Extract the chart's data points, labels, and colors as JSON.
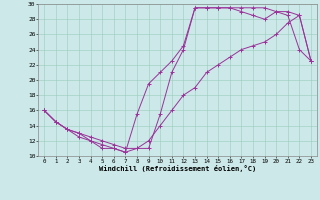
{
  "xlabel": "Windchill (Refroidissement éolien,°C)",
  "bg_color": "#cce8e8",
  "line_color": "#993399",
  "xlim": [
    -0.5,
    23.5
  ],
  "ylim": [
    10,
    30
  ],
  "xticks": [
    0,
    1,
    2,
    3,
    4,
    5,
    6,
    7,
    8,
    9,
    10,
    11,
    12,
    13,
    14,
    15,
    16,
    17,
    18,
    19,
    20,
    21,
    22,
    23
  ],
  "yticks": [
    10,
    12,
    14,
    16,
    18,
    20,
    22,
    24,
    26,
    28,
    30
  ],
  "line1_x": [
    0,
    1,
    2,
    3,
    4,
    5,
    6,
    7,
    8,
    9,
    10,
    11,
    12,
    13,
    14,
    15,
    16,
    17,
    18,
    19,
    20,
    21,
    22,
    23
  ],
  "line1_y": [
    16,
    14.5,
    13.5,
    13,
    12,
    11,
    11,
    10.5,
    11,
    11,
    15.5,
    21,
    24,
    29.5,
    29.5,
    29.5,
    29.5,
    29.5,
    29.5,
    29.5,
    29,
    29,
    28.5,
    22.5
  ],
  "line2_x": [
    0,
    1,
    2,
    3,
    4,
    5,
    6,
    7,
    8,
    9,
    10,
    11,
    12,
    13,
    14,
    15,
    16,
    17,
    18,
    19,
    20,
    21,
    22,
    23
  ],
  "line2_y": [
    16,
    14.5,
    13.5,
    12.5,
    12,
    11.5,
    11,
    10.5,
    15.5,
    19.5,
    21,
    22.5,
    24.5,
    29.5,
    29.5,
    29.5,
    29.5,
    29,
    28.5,
    28,
    29,
    28.5,
    24,
    22.5
  ],
  "line3_x": [
    0,
    1,
    2,
    3,
    4,
    5,
    6,
    7,
    8,
    9,
    10,
    11,
    12,
    13,
    14,
    15,
    16,
    17,
    18,
    19,
    20,
    21,
    22,
    23
  ],
  "line3_y": [
    16,
    14.5,
    13.5,
    13,
    12.5,
    12,
    11.5,
    11,
    11,
    12,
    14,
    16,
    18,
    19,
    21,
    22,
    23,
    24,
    24.5,
    25,
    26,
    27.5,
    28.5,
    22.5
  ]
}
